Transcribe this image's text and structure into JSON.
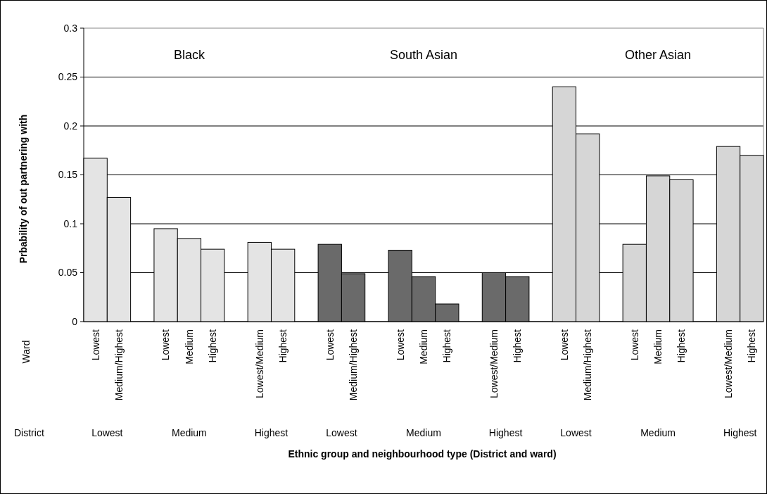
{
  "chart_data": {
    "type": "bar",
    "ylabel": "Prbability of out partnering with",
    "xlabel": "Ethnic group and neighbourhood type (District and ward)",
    "categories": [
      "Lowest",
      "Medium/Highest",
      null,
      "Lowest",
      "Medium",
      "Highest",
      null,
      "Lowest/Medium",
      "Highest",
      null,
      "Lowest",
      "Medium/Highest",
      null,
      "Lowest",
      "Medium",
      "Highest",
      null,
      "Lowest/Medium",
      "Highest",
      null,
      "Lowest",
      "Medium/Highest",
      null,
      "Lowest",
      "Medium",
      "Highest",
      null,
      "Lowest/Medium",
      "Highest"
    ],
    "series": [
      {
        "color": "#e4e4e4",
        "values": [
          0.167,
          0.127,
          null,
          0.095,
          0.085,
          0.074,
          null,
          0.081,
          0.074,
          null,
          null,
          null,
          null,
          null,
          null,
          null,
          null,
          null,
          null,
          null,
          null,
          null,
          null,
          null,
          null,
          null,
          null,
          null,
          null
        ]
      },
      {
        "color": "#6a6a6a",
        "values": [
          null,
          null,
          null,
          null,
          null,
          null,
          null,
          null,
          null,
          null,
          0.079,
          0.049,
          null,
          0.073,
          0.046,
          0.018,
          null,
          0.05,
          0.046,
          null,
          null,
          null,
          null,
          null,
          null,
          null,
          null,
          null,
          null
        ]
      },
      {
        "color": "#d6d6d6",
        "values": [
          null,
          null,
          null,
          null,
          null,
          null,
          null,
          null,
          null,
          null,
          null,
          null,
          null,
          null,
          null,
          null,
          null,
          null,
          null,
          null,
          0.24,
          0.192,
          null,
          0.079,
          0.149,
          0.145,
          null,
          0.179,
          0.17
        ]
      }
    ],
    "ylim": [
      0,
      0.3
    ],
    "yticks": [
      0,
      0.05,
      0.1,
      0.15,
      0.2,
      0.25,
      0.3
    ],
    "grid": "y",
    "annotations": [
      "Black",
      "South Asian",
      "Other Asian",
      "Ward",
      "District",
      "Lowest",
      "Medium",
      "Highest",
      "Lowest",
      "Medium",
      "Highest",
      "Lowest",
      "Medium",
      "Highest"
    ]
  }
}
